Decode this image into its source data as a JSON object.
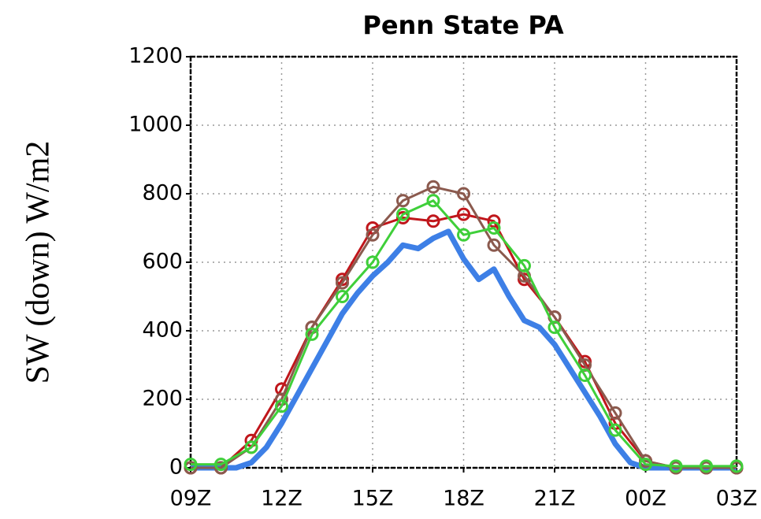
{
  "chart_data": {
    "type": "line",
    "title": "Penn State PA",
    "y_label": "SW (down) W/m2",
    "xlim": [
      9,
      27
    ],
    "xticks": [
      {
        "value": 9,
        "label": "09Z"
      },
      {
        "value": 12,
        "label": "12Z"
      },
      {
        "value": 15,
        "label": "15Z"
      },
      {
        "value": 18,
        "label": "18Z"
      },
      {
        "value": 21,
        "label": "21Z"
      },
      {
        "value": 24,
        "label": "00Z"
      },
      {
        "value": 27,
        "label": "03Z"
      }
    ],
    "ylim": [
      0,
      1200
    ],
    "yticks": [
      0,
      200,
      400,
      600,
      800,
      1000,
      1200
    ],
    "grid": true,
    "series": [
      {
        "color": "#3d7fe6",
        "markers": false,
        "x": [
          9,
          9.5,
          10,
          10.5,
          11,
          11.5,
          12,
          12.5,
          13,
          13.5,
          14,
          14.5,
          15,
          15.5,
          16,
          16.5,
          17,
          17.5,
          18,
          18.5,
          19,
          19.5,
          20,
          20.5,
          21,
          21.5,
          22,
          22.5,
          23,
          23.5,
          24,
          24.5,
          25,
          25.5,
          26,
          26.5,
          27
        ],
        "values": [
          0,
          0,
          0,
          0,
          15,
          60,
          130,
          210,
          290,
          370,
          450,
          510,
          560,
          600,
          650,
          640,
          670,
          690,
          610,
          550,
          580,
          500,
          430,
          410,
          360,
          290,
          220,
          150,
          70,
          15,
          0,
          0,
          0,
          0,
          0,
          0,
          0
        ]
      },
      {
        "color": "#c0161b",
        "markers": true,
        "x": [
          9,
          10,
          11,
          12,
          13,
          14,
          15,
          16,
          17,
          18,
          19,
          20,
          21,
          22,
          23,
          24,
          25,
          26,
          27
        ],
        "values": [
          0,
          0,
          80,
          230,
          410,
          550,
          700,
          730,
          720,
          740,
          720,
          550,
          440,
          310,
          130,
          20,
          0,
          0,
          0
        ]
      },
      {
        "color": "#8b5a4e",
        "markers": true,
        "x": [
          9,
          10,
          11,
          12,
          13,
          14,
          15,
          16,
          17,
          18,
          19,
          20,
          21,
          22,
          23,
          24,
          25,
          26,
          27
        ],
        "values": [
          0,
          0,
          60,
          200,
          410,
          540,
          680,
          780,
          820,
          800,
          650,
          560,
          440,
          300,
          160,
          20,
          0,
          0,
          0
        ]
      },
      {
        "color": "#3fcf3a",
        "markers": true,
        "x": [
          9,
          10,
          11,
          12,
          13,
          14,
          15,
          16,
          17,
          18,
          19,
          20,
          21,
          22,
          23,
          24,
          25,
          26,
          27
        ],
        "values": [
          10,
          10,
          60,
          180,
          390,
          500,
          600,
          740,
          780,
          680,
          700,
          590,
          410,
          270,
          110,
          10,
          5,
          5,
          5
        ]
      }
    ]
  }
}
